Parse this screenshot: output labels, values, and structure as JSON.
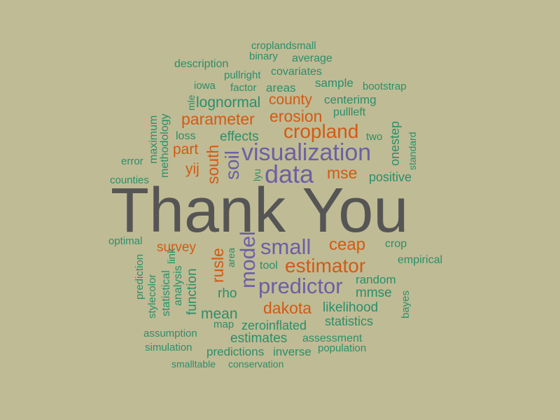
{
  "colors": {
    "background": "#bfbb95",
    "green": "#2a8f6a",
    "orange": "#d35a14",
    "purple": "#6b5fa5",
    "gray": "#555555"
  },
  "title": "Thank You",
  "words": {
    "croplandsmall": "croplandsmall",
    "binary": "binary",
    "average": "average",
    "description": "description",
    "pullright": "pullright",
    "covariates": "covariates",
    "iowa": "iowa",
    "factor": "factor",
    "areas": "areas",
    "sample": "sample",
    "bootstrap": "bootstrap",
    "mle": "mle",
    "lognormal": "lognormal",
    "county": "county",
    "centerimg": "centerimg",
    "maximum": "maximum",
    "methodology": "methodology",
    "parameter": "parameter",
    "erosion": "erosion",
    "pullleft": "pullleft",
    "onestep": "onestep",
    "loss": "loss",
    "effects": "effects",
    "cropland": "cropland",
    "two": "two",
    "standard": "standard",
    "part": "part",
    "south": "south",
    "soil": "soil",
    "visualization": "visualization",
    "error": "error",
    "yij": "yij",
    "lyu": "lyu",
    "data": "data",
    "mse": "mse",
    "positive": "positive",
    "counties": "counties",
    "optimal": "optimal",
    "survey": "survey",
    "rusle": "rusle",
    "area": "area",
    "model": "model",
    "small": "small",
    "ceap": "ceap",
    "crop": "crop",
    "prediction": "prediction",
    "stylecolor": "stylecolor",
    "link": "link",
    "statistical": "statistical",
    "analysis": "analysis",
    "function": "function",
    "tool": "tool",
    "estimator": "estimator",
    "empirical": "empirical",
    "random": "random",
    "rho": "rho",
    "predictor": "predictor",
    "mmse": "mmse",
    "bayes": "bayes",
    "dakota": "dakota",
    "likelihood": "likelihood",
    "mean": "mean",
    "map": "map",
    "zeroinflated": "zeroinflated",
    "statistics": "statistics",
    "assumption": "assumption",
    "estimates": "estimates",
    "assessment": "assessment",
    "simulation": "simulation",
    "predictions": "predictions",
    "inverse": "inverse",
    "population": "population",
    "smalltable": "smalltable",
    "conservation": "conservation"
  }
}
